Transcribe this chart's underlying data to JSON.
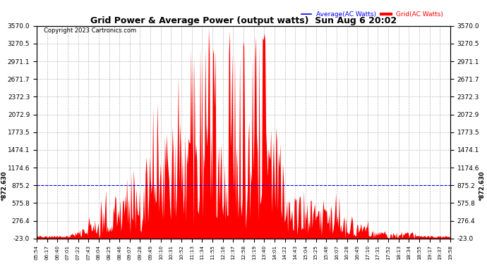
{
  "title": "Grid Power & Average Power (output watts)  Sun Aug 6 20:02",
  "copyright": "Copyright 2023 Cartronics.com",
  "legend_avg": "Average(AC Watts)",
  "legend_grid": "Grid(AC Watts)",
  "y_ticks": [
    3570.0,
    3270.5,
    2971.1,
    2671.7,
    2372.3,
    2072.9,
    1773.5,
    1474.1,
    1174.6,
    875.2,
    575.8,
    276.4,
    -23.0
  ],
  "avg_line_y": 872.63,
  "avg_line_label": "*872.630",
  "ylim_min": -23.0,
  "ylim_max": 3570.0,
  "background_color": "#ffffff",
  "grid_color": "#bbbbbb",
  "fill_color": "#ff0000",
  "avg_line_color": "#0000ff",
  "title_color": "#000000",
  "copyright_color": "#000000",
  "legend_avg_color": "#0000ff",
  "legend_grid_color": "#ff0000",
  "x_labels": [
    "05:54",
    "06:17",
    "06:40",
    "07:01",
    "07:22",
    "07:43",
    "08:04",
    "08:25",
    "08:46",
    "09:07",
    "09:28",
    "09:49",
    "10:10",
    "10:31",
    "10:52",
    "11:13",
    "11:34",
    "11:55",
    "12:16",
    "12:37",
    "12:58",
    "13:19",
    "13:40",
    "14:01",
    "14:22",
    "14:43",
    "15:04",
    "15:25",
    "15:46",
    "16:07",
    "16:28",
    "16:49",
    "17:10",
    "17:31",
    "17:52",
    "18:13",
    "18:34",
    "18:55",
    "19:17",
    "19:37",
    "19:58"
  ]
}
